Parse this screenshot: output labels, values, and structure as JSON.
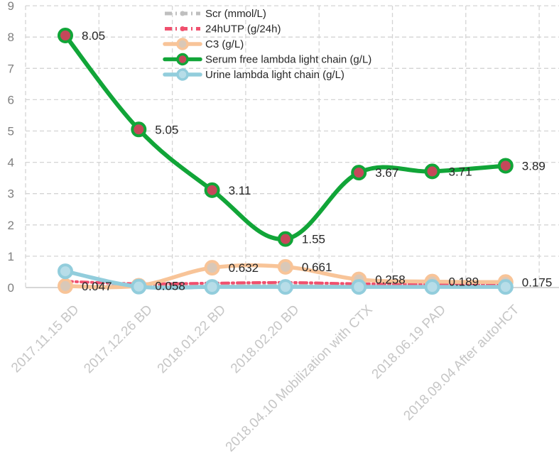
{
  "chart_data": {
    "type": "line",
    "title": "",
    "xlabel": "",
    "ylabel": "",
    "ylim": [
      0,
      9
    ],
    "yticks": [
      0,
      1,
      2,
      3,
      4,
      5,
      6,
      7,
      8,
      9
    ],
    "grid": true,
    "legend_position": "top-center",
    "categories": [
      "2017.11.15 BD",
      "2017.12.26 BD",
      "2018.01.22 BD",
      "2018.02.20 BD",
      "2018.04.10 Mobilization with CTX",
      "2018.06.19 PAD",
      "2018.09.04 After autoHCT"
    ],
    "series": [
      {
        "name": "Scr (mmol/L)",
        "color": "#bfbfbf",
        "style": "dash-dot",
        "values": [
          0.05,
          0.05,
          0.06,
          0.07,
          0.06,
          0.06,
          0.05
        ]
      },
      {
        "name": "24hUTP (g/24h)",
        "color": "#f0506e",
        "style": "dash-dot",
        "values": [
          0.2,
          0.12,
          0.14,
          0.16,
          0.12,
          0.1,
          0.08
        ]
      },
      {
        "name": "C3 (g/L)",
        "color": "#f8c498",
        "style": "solid",
        "values": [
          0.047,
          0.058,
          0.632,
          0.661,
          0.258,
          0.189,
          0.175
        ],
        "data_labels": [
          "0.047",
          "0.058",
          "0.632",
          "0.661",
          "0.258",
          "0.189",
          "0.175"
        ]
      },
      {
        "name": "Serum free lambda light chain (g/L)",
        "color": "#11a538",
        "style": "solid",
        "values": [
          8.05,
          5.05,
          3.11,
          1.55,
          3.67,
          3.71,
          3.89
        ],
        "data_labels": [
          "8.05",
          "5.05",
          "3.11",
          "1.55",
          "3.67",
          "3.71",
          "3.89"
        ]
      },
      {
        "name": "Urine lambda light chain (g/L)",
        "color": "#92cddc",
        "style": "solid",
        "values": [
          0.52,
          0.03,
          0.02,
          0.02,
          0.02,
          0.02,
          0.02
        ]
      }
    ]
  }
}
